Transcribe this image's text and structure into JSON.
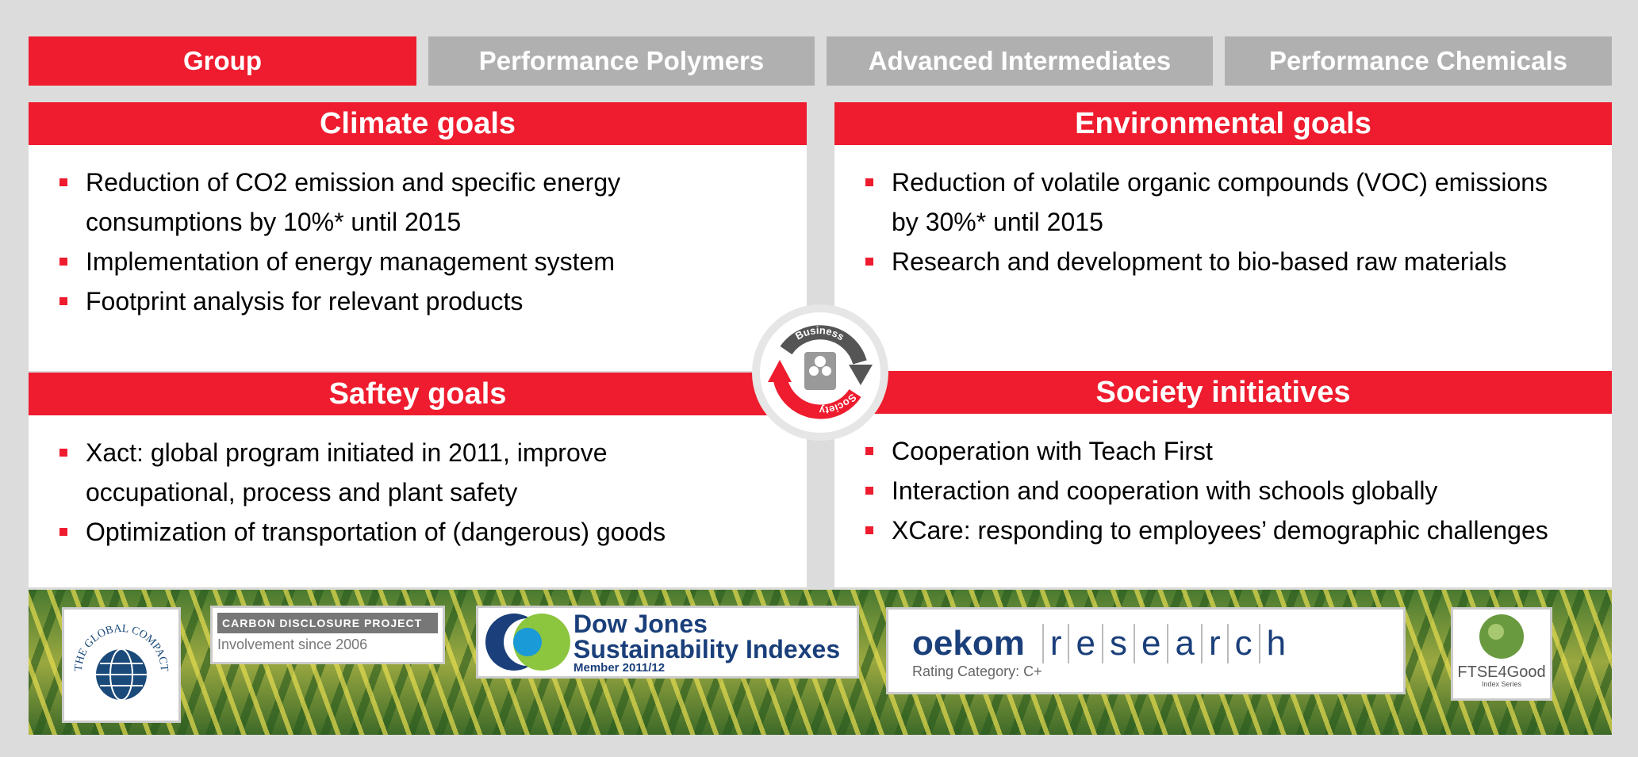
{
  "tabs": [
    "Group",
    "Performance Polymers",
    "Advanced Intermediates",
    "Performance Chemicals"
  ],
  "panels": [
    {
      "title": "Climate goals",
      "bullets": [
        "Reduction of CO2 emission and specific energy consumptions by 10%* until 2015",
        "Implementation of energy management system",
        "Footprint analysis for relevant products"
      ]
    },
    {
      "title": "Environmental goals",
      "bullets": [
        "Reduction of volatile organic compounds (VOC) emissions by 30%* until 2015",
        "Research and development to bio-based raw materials"
      ]
    },
    {
      "title": "Saftey goals",
      "bullets": [
        "Xact: global program initiated in 2011, improve occupational, process and plant safety",
        "Optimization of transportation of (dangerous) goods"
      ]
    },
    {
      "title": "Society initiatives",
      "bullets": [
        "Cooperation with Teach First",
        "Interaction and cooperation with schools globally",
        "XCare: responding to employees’ demographic challenges"
      ]
    }
  ],
  "cycle": {
    "top": "Business",
    "bottom": "Society"
  },
  "logos": {
    "global_compact": "THE GLOBAL COMPACT",
    "cdp": {
      "name": "CARBON DISCLOSURE PROJECT",
      "note": "Involvement since 2006"
    },
    "djsi": {
      "line1": "Dow Jones",
      "line2": "Sustainability Indexes",
      "line3": "Member 2011/12"
    },
    "oekom": {
      "brand": "oekom",
      "letters": [
        "r",
        "e",
        "s",
        "e",
        "a",
        "r",
        "c",
        "h"
      ],
      "rating": "Rating Category: C+"
    },
    "ftse": {
      "name": "FTSE4Good",
      "sub": "Index Series"
    }
  }
}
